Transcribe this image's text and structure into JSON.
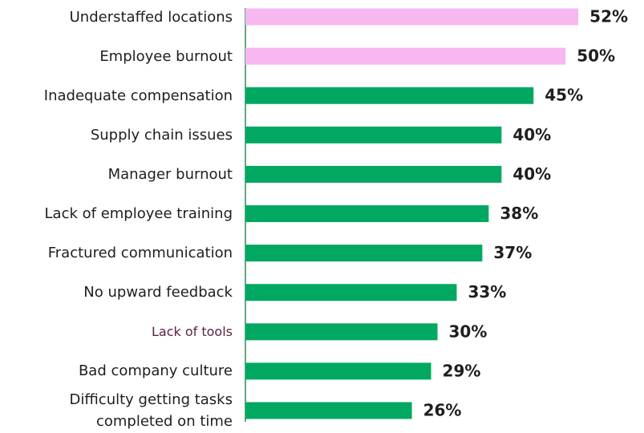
{
  "chart_data": {
    "type": "bar",
    "orientation": "horizontal",
    "categories": [
      "Understaffed locations",
      "Employee burnout",
      "Inadequate compensation",
      "Supply chain issues",
      "Manager burnout",
      "Lack of employee training",
      "Fractured communication",
      "No upward feedback",
      "Lack of tools",
      "Bad company culture",
      "Difficulty getting tasks completed on time"
    ],
    "values": [
      52,
      50,
      45,
      40,
      40,
      38,
      37,
      33,
      30,
      29,
      26
    ],
    "value_labels": [
      "52%",
      "50%",
      "45%",
      "40%",
      "40%",
      "38%",
      "37%",
      "33%",
      "30%",
      "29%",
      "26%"
    ],
    "colors": [
      "#f7b8f0",
      "#f7b8f0",
      "#00a862",
      "#00a862",
      "#00a862",
      "#00a862",
      "#00a862",
      "#00a862",
      "#00a862",
      "#00a862",
      "#00a862"
    ],
    "xlim": [
      0,
      62
    ]
  }
}
